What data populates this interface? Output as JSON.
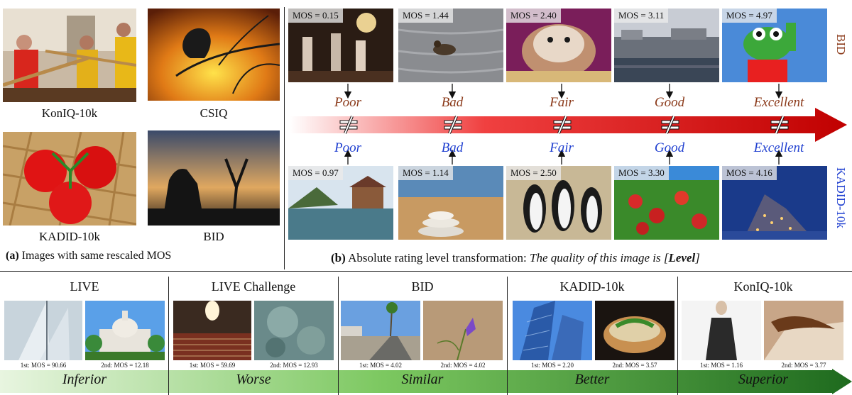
{
  "panel_a": {
    "datasets": [
      {
        "label": "KonIQ-10k"
      },
      {
        "label": "CSIQ"
      },
      {
        "label": "KADID-10k"
      },
      {
        "label": "BID"
      }
    ],
    "caption_bold": "(a)",
    "caption_text": "Images with same rescaled MOS"
  },
  "panel_b": {
    "top_side_label": "BID",
    "bottom_side_label": "KADID-10k",
    "top_row": [
      {
        "mos": "MOS = 0.15",
        "level": "Poor"
      },
      {
        "mos": "MOS = 1.44",
        "level": "Bad"
      },
      {
        "mos": "MOS = 2.40",
        "level": "Fair"
      },
      {
        "mos": "MOS = 3.11",
        "level": "Good"
      },
      {
        "mos": "MOS = 4.97",
        "level": "Excellent"
      }
    ],
    "bottom_row": [
      {
        "mos": "MOS = 0.97",
        "level": "Poor"
      },
      {
        "mos": "MOS = 1.14",
        "level": "Bad"
      },
      {
        "mos": "MOS = 2.50",
        "level": "Fair"
      },
      {
        "mos": "MOS = 3.30",
        "level": "Good"
      },
      {
        "mos": "MOS = 4.16",
        "level": "Excellent"
      }
    ],
    "neq_symbol": "≠",
    "caption_bold": "(b)",
    "caption_text": "Absolute rating level transformation:",
    "caption_italic": "The quality of this image is [",
    "caption_level": "Level",
    "caption_close": "]",
    "colors": {
      "arrow": "#e00000",
      "bid_text": "#8b3a1a",
      "kadid_text": "#1f3fd0"
    }
  },
  "bottom": {
    "datasets": [
      {
        "name": "LIVE",
        "first": "1st: MOS = 90.66",
        "second": "2nd: MOS = 12.18",
        "word": "Inferior"
      },
      {
        "name": "LIVE Challenge",
        "first": "1st: MOS = 59.69",
        "second": "2nd: MOS = 12.93",
        "word": "Worse"
      },
      {
        "name": "BID",
        "first": "1st: MOS = 4.02",
        "second": "2nd: MOS = 4.02",
        "word": "Similar"
      },
      {
        "name": "KADID-10k",
        "first": "1st: MOS = 2.20",
        "second": "2nd: MOS = 3.57",
        "word": "Better"
      },
      {
        "name": "KonIQ-10k",
        "first": "1st: MOS = 1.16",
        "second": "2nd: MOS = 3.77",
        "word": "Superior"
      }
    ],
    "colors": {
      "arrow_start": "#e8f5e0",
      "arrow_end": "#1e6a1e"
    }
  }
}
